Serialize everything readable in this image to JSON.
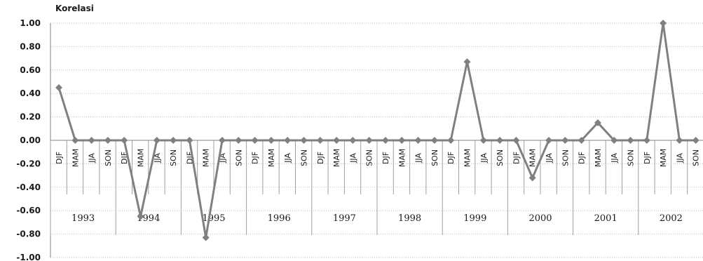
{
  "chart_data": {
    "type": "line",
    "title": "Korelasi",
    "xlabel": "",
    "ylabel": "",
    "ylim": [
      -1.0,
      1.0
    ],
    "y_ticks": [
      "1.00",
      "0.80",
      "0.60",
      "0.40",
      "0.20",
      "0.00",
      "-0.20",
      "-0.40",
      "-0.60",
      "-0.80",
      "-1.00"
    ],
    "grid": true,
    "seasons": [
      "DJF",
      "MAM",
      "JJA",
      "SON"
    ],
    "years": [
      "1993",
      "1994",
      "1995",
      "1996",
      "1997",
      "1998",
      "1999",
      "2000",
      "2001",
      "2002"
    ],
    "series": [
      {
        "values": [
          0.45,
          0,
          0,
          0,
          0,
          -0.65,
          0,
          0,
          0,
          -0.83,
          0,
          0,
          0,
          0,
          0,
          0,
          0,
          0,
          0,
          0,
          0,
          0,
          0,
          0,
          0,
          0.67,
          0,
          0,
          0,
          -0.32,
          0,
          0,
          0,
          0.15,
          0,
          0,
          0,
          1.0,
          0,
          0
        ],
        "color": "#808080"
      }
    ]
  }
}
